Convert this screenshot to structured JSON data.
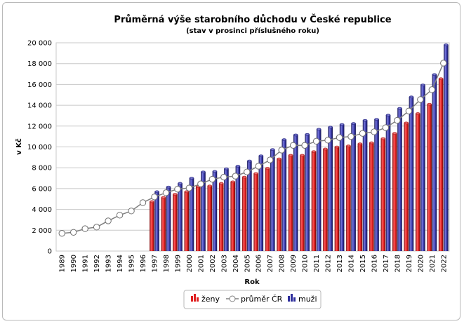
{
  "chart_data": {
    "type": "bar",
    "title": "Průměrná výše starobního důchodu v České republice",
    "subtitle": "(stav v prosinci příslušného roku)",
    "xlabel": "Rok",
    "ylabel": "v Kč",
    "ylim": [
      0,
      20000
    ],
    "yticks": [
      0,
      2000,
      4000,
      6000,
      8000,
      10000,
      12000,
      14000,
      16000,
      18000,
      20000
    ],
    "ytick_labels": [
      "0",
      "2 000",
      "4 000",
      "6 000",
      "8 000",
      "10 000",
      "12 000",
      "14 000",
      "16 000",
      "18 000",
      "20 000"
    ],
    "categories": [
      "1989",
      "1990",
      "1991",
      "1992",
      "1993",
      "1994",
      "1995",
      "1996",
      "1997",
      "1998",
      "1999",
      "2000",
      "2001",
      "2002",
      "2003",
      "2004",
      "2005",
      "2006",
      "2007",
      "2008",
      "2009",
      "2010",
      "2011",
      "2012",
      "2013",
      "2014",
      "2015",
      "2016",
      "2017",
      "2018",
      "2019",
      "2020",
      "2021",
      "2022"
    ],
    "series": [
      {
        "name": "ženy",
        "kind": "bar",
        "color": "#e02020",
        "values": [
          null,
          null,
          null,
          null,
          null,
          null,
          null,
          null,
          4750,
          5150,
          5450,
          5700,
          6200,
          6250,
          6500,
          6650,
          7100,
          7450,
          7950,
          8850,
          9200,
          9200,
          9550,
          9800,
          10000,
          10100,
          10300,
          10400,
          10800,
          11300,
          12300,
          13200,
          14100,
          16550
        ]
      },
      {
        "name": "průměr ČR",
        "kind": "line",
        "color": "#808080",
        "values": [
          1700,
          1800,
          2150,
          2300,
          2900,
          3450,
          3850,
          4650,
          5200,
          5600,
          5950,
          6050,
          6450,
          6900,
          7100,
          7200,
          7600,
          8150,
          8750,
          9700,
          10150,
          10150,
          10550,
          10650,
          10900,
          11000,
          11300,
          11450,
          11850,
          12550,
          13450,
          14550,
          15500,
          18050
        ]
      },
      {
        "name": "muži",
        "kind": "bar",
        "color": "#2e2e9c",
        "values": [
          null,
          null,
          null,
          null,
          null,
          null,
          null,
          null,
          5700,
          6150,
          6500,
          7000,
          7600,
          7650,
          7900,
          8150,
          8650,
          9150,
          9750,
          10700,
          11150,
          11200,
          11700,
          11900,
          12150,
          12250,
          12550,
          12650,
          13050,
          13700,
          14800,
          15950,
          16950,
          19800
        ]
      }
    ],
    "grid": true,
    "legend_position": "bottom"
  }
}
